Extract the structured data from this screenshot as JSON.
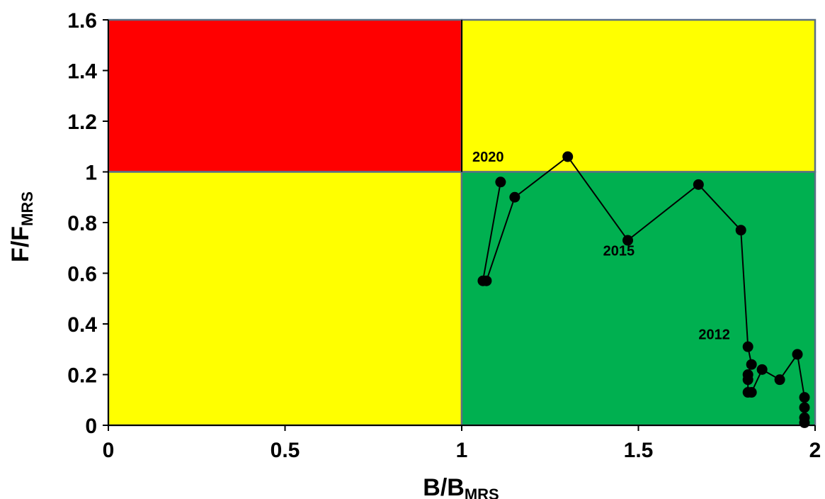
{
  "chart_data": {
    "type": "scatter",
    "title": "",
    "xlabel": {
      "main": "B/B",
      "sub": "MRS"
    },
    "ylabel": {
      "main": "F/F",
      "sub": "MRS"
    },
    "xlim": [
      0,
      2
    ],
    "ylim": [
      0,
      1.6
    ],
    "x_ticks": [
      "0",
      "0.5",
      "1",
      "1.5",
      "2"
    ],
    "y_ticks": [
      "0",
      "0.2",
      "0.4",
      "0.6",
      "0.8",
      "1",
      "1.2",
      "1.4",
      "1.6"
    ],
    "grid": false,
    "legend": "none",
    "zones": [
      {
        "name": "overfishing-overfished",
        "x": [
          0,
          1
        ],
        "y": [
          1,
          1.6
        ],
        "color": "#FF0000"
      },
      {
        "name": "overfishing-healthy",
        "x": [
          1,
          2
        ],
        "y": [
          1,
          1.6
        ],
        "color": "#FFFF00"
      },
      {
        "name": "no-overfishing-overfished",
        "x": [
          0,
          1
        ],
        "y": [
          0,
          1
        ],
        "color": "#FFFF00"
      },
      {
        "name": "no-overfishing-healthy",
        "x": [
          1,
          2
        ],
        "y": [
          0,
          1
        ],
        "color": "#00B050"
      }
    ],
    "series": [
      {
        "connected": true,
        "color": "#000000",
        "points": [
          [
            1.97,
            0.01
          ],
          [
            1.97,
            0.03
          ],
          [
            1.97,
            0.07
          ],
          [
            1.97,
            0.11
          ],
          [
            1.95,
            0.28
          ],
          [
            1.9,
            0.18
          ],
          [
            1.85,
            0.22
          ],
          [
            1.82,
            0.13
          ],
          [
            1.81,
            0.13
          ],
          [
            1.81,
            0.18
          ],
          [
            1.81,
            0.2
          ],
          [
            1.82,
            0.24
          ],
          [
            1.81,
            0.31
          ],
          [
            1.79,
            0.77
          ],
          [
            1.67,
            0.95
          ],
          [
            1.47,
            0.73
          ],
          [
            1.3,
            1.06
          ],
          [
            1.15,
            0.9
          ],
          [
            1.07,
            0.57
          ],
          [
            1.06,
            0.57
          ],
          [
            1.11,
            0.96
          ]
        ]
      }
    ],
    "annotations": [
      {
        "text": "2020",
        "x": 1.03,
        "y": 1.04
      },
      {
        "text": "2015",
        "x": 1.4,
        "y": 0.67
      },
      {
        "text": "2012",
        "x": 1.67,
        "y": 0.34
      }
    ]
  }
}
